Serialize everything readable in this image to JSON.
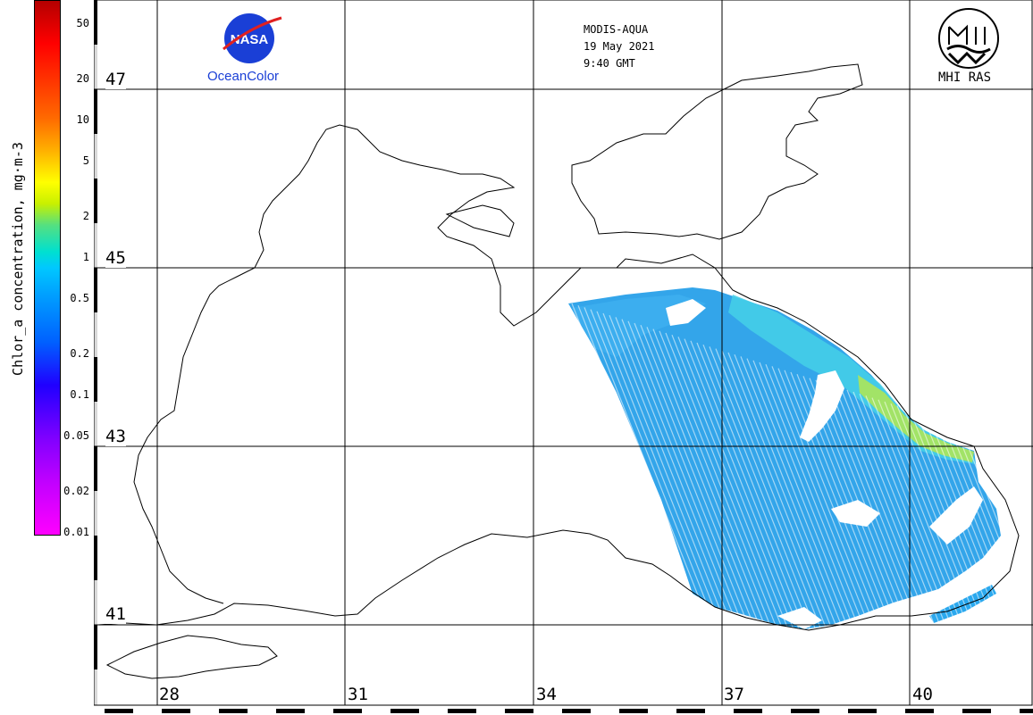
{
  "header": {
    "satellite": "MODIS-AQUA",
    "date": "19 May 2021",
    "time": "9:40 GMT"
  },
  "logos": {
    "nasa_word": "NASA",
    "oceancolor": "OceanColor",
    "institute": "MHI RAS"
  },
  "colorbar": {
    "title": "Chlor_a concentration, mg·m-3",
    "scale": "log",
    "ticks": [
      "50",
      "20",
      "10",
      "5",
      "2",
      "1",
      "0.5",
      "0.2",
      "0.1",
      "0.05",
      "0.02",
      "0.01"
    ]
  },
  "map": {
    "latitudes": [
      "47",
      "45",
      "43",
      "41"
    ],
    "longitudes": [
      "28",
      "31",
      "34",
      "37",
      "40"
    ]
  },
  "colors": {
    "coast": "#000000",
    "grid": "#000000",
    "chl_low": "#0a8cf0",
    "chl_mid": "#3cd2e6",
    "chl_high": "#b4e65a",
    "land": "#ffffff"
  }
}
